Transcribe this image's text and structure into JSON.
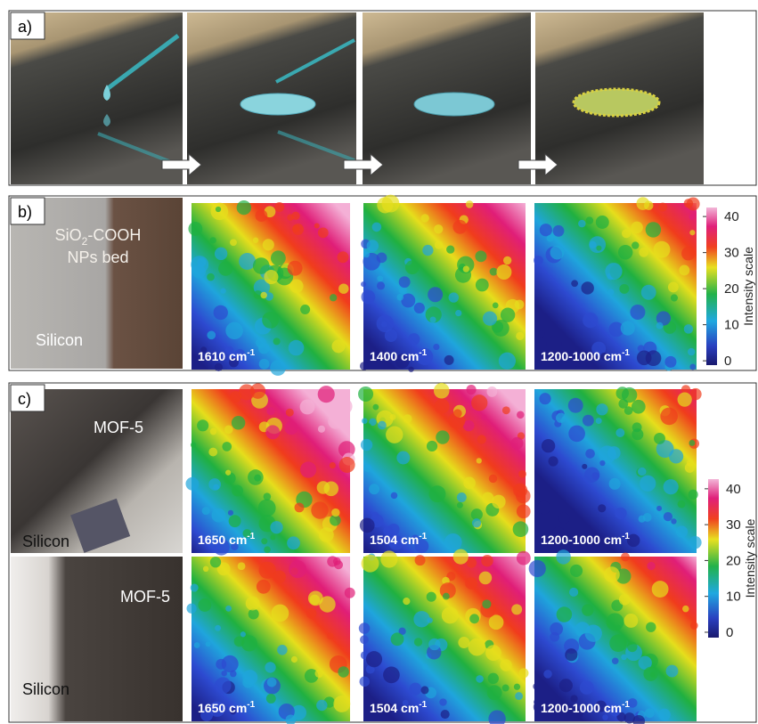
{
  "panels": {
    "a": {
      "label": "a)"
    },
    "b": {
      "label": "b)",
      "photo": {
        "title": [
          "SiO",
          "2",
          "-COOH"
        ],
        "subtitle": "NPs bed",
        "substrate": "Silicon"
      },
      "maps": [
        {
          "label": "1610 cm",
          "sup": "-1"
        },
        {
          "label": "1400 cm",
          "sup": "-1"
        },
        {
          "label": "1200-1000 cm",
          "sup": "-1"
        }
      ],
      "colorbar": {
        "title": "Intensity scale",
        "lim": [
          -1.2,
          42.5
        ],
        "ticks": [
          0,
          10,
          20,
          30,
          40
        ]
      }
    },
    "c": {
      "label": "c)",
      "rows": [
        {
          "photo": {
            "title": "MOF-5",
            "substrate": "Silicon"
          },
          "maps": [
            {
              "label": "1650 cm",
              "sup": "-1"
            },
            {
              "label": "1504 cm",
              "sup": "-1"
            },
            {
              "label": "1200-1000 cm",
              "sup": "-1"
            }
          ]
        },
        {
          "photo": {
            "title": "MOF-5",
            "substrate": "Silicon"
          },
          "maps": [
            {
              "label": "1650 cm",
              "sup": "-1"
            },
            {
              "label": "1504 cm",
              "sup": "-1"
            },
            {
              "label": "1200-1000 cm",
              "sup": "-1"
            }
          ]
        }
      ],
      "colorbar": {
        "title": "Intensity scale",
        "lim": [
          -1.5,
          42.7
        ],
        "ticks": [
          0,
          10,
          20,
          30,
          40
        ]
      }
    }
  }
}
